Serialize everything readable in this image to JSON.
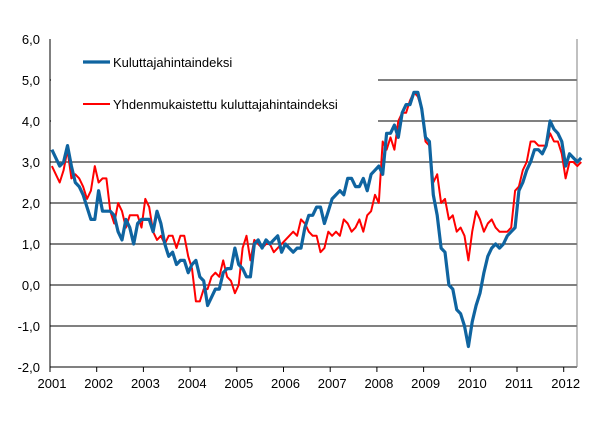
{
  "chart_data": {
    "type": "line",
    "title": "",
    "xlabel": "",
    "ylabel": "",
    "ylim": [
      -2.0,
      6.0
    ],
    "yticks": [
      "-2,0",
      "-1,0",
      "0,0",
      "1,0",
      "2,0",
      "3,0",
      "4,0",
      "5,0",
      "6,0"
    ],
    "xticks": [
      "2001",
      "2002",
      "2003",
      "2004",
      "2005",
      "2006",
      "2007",
      "2008",
      "2009",
      "2010",
      "2011",
      "2012"
    ],
    "x_start": "2001-01",
    "frequency": "monthly",
    "grid": "horizontal",
    "legend_placement": "top-left",
    "series": [
      {
        "name": "Kuluttajahintaindeksi",
        "color": "#0f64a0",
        "values": [
          3.3,
          3.1,
          2.9,
          3.0,
          3.4,
          2.9,
          2.5,
          2.4,
          2.2,
          1.9,
          1.6,
          1.6,
          2.3,
          1.8,
          1.8,
          1.8,
          1.7,
          1.3,
          1.1,
          1.6,
          1.4,
          1.0,
          1.5,
          1.6,
          1.6,
          1.6,
          1.3,
          1.8,
          1.5,
          1.0,
          0.7,
          0.8,
          0.5,
          0.6,
          0.6,
          0.3,
          0.5,
          0.6,
          0.2,
          0.1,
          -0.5,
          -0.3,
          -0.1,
          -0.1,
          0.3,
          0.4,
          0.4,
          0.9,
          0.5,
          0.4,
          0.2,
          0.2,
          1.0,
          1.1,
          0.9,
          1.1,
          1.0,
          1.1,
          1.2,
          0.8,
          1.0,
          0.9,
          0.8,
          0.9,
          0.9,
          1.4,
          1.7,
          1.7,
          1.9,
          1.9,
          1.5,
          1.8,
          2.1,
          2.2,
          2.3,
          2.2,
          2.6,
          2.6,
          2.4,
          2.4,
          2.6,
          2.3,
          2.7,
          2.8,
          2.9,
          2.7,
          3.7,
          3.7,
          3.9,
          3.6,
          4.2,
          4.4,
          4.4,
          4.7,
          4.7,
          4.3,
          3.6,
          3.5,
          2.2,
          1.7,
          0.9,
          0.8,
          0.0,
          -0.1,
          -0.6,
          -0.7,
          -1.0,
          -1.5,
          -0.9,
          -0.5,
          -0.2,
          0.3,
          0.7,
          0.9,
          1.0,
          0.9,
          1.0,
          1.2,
          1.3,
          1.4,
          2.3,
          2.5,
          2.8,
          3.0,
          3.3,
          3.3,
          3.2,
          3.4,
          4.0,
          3.8,
          3.7,
          3.5,
          2.9,
          3.2,
          3.1,
          3.0,
          3.1
        ]
      },
      {
        "name": "Yhdenmukaistettu kuluttajahintaindeksi",
        "color": "#ff0000",
        "values": [
          2.9,
          2.7,
          2.5,
          2.8,
          3.3,
          2.6,
          2.7,
          2.6,
          2.4,
          2.1,
          2.3,
          2.9,
          2.5,
          2.6,
          2.6,
          1.8,
          1.5,
          2.0,
          1.8,
          1.4,
          1.7,
          1.7,
          1.7,
          1.4,
          2.1,
          1.9,
          1.3,
          1.1,
          1.2,
          1.0,
          1.2,
          1.2,
          0.9,
          1.2,
          1.2,
          0.7,
          0.4,
          -0.4,
          -0.4,
          -0.1,
          -0.1,
          0.2,
          0.3,
          0.2,
          0.6,
          0.2,
          0.1,
          -0.2,
          0.0,
          0.9,
          1.2,
          0.6,
          1.1,
          1.0,
          0.9,
          1.0,
          1.0,
          0.8,
          0.9,
          1.0,
          1.1,
          1.2,
          1.3,
          1.2,
          1.6,
          1.5,
          1.3,
          1.2,
          1.2,
          0.8,
          0.9,
          1.3,
          1.2,
          1.3,
          1.2,
          1.6,
          1.5,
          1.3,
          1.4,
          1.6,
          1.3,
          1.7,
          1.8,
          2.2,
          2.0,
          3.5,
          3.3,
          3.6,
          3.3,
          4.0,
          4.2,
          4.2,
          4.5,
          4.7,
          4.6,
          4.3,
          3.5,
          3.4,
          2.5,
          2.7,
          2.0,
          2.1,
          1.6,
          1.7,
          1.3,
          1.4,
          1.2,
          0.6,
          1.3,
          1.8,
          1.6,
          1.3,
          1.5,
          1.6,
          1.4,
          1.3,
          1.3,
          1.3,
          1.4,
          2.3,
          2.4,
          2.8,
          3.0,
          3.5,
          3.5,
          3.4,
          3.4,
          3.4,
          3.7,
          3.5,
          3.5,
          3.2,
          2.6,
          3.0,
          3.0,
          2.9,
          3.0
        ]
      }
    ]
  }
}
